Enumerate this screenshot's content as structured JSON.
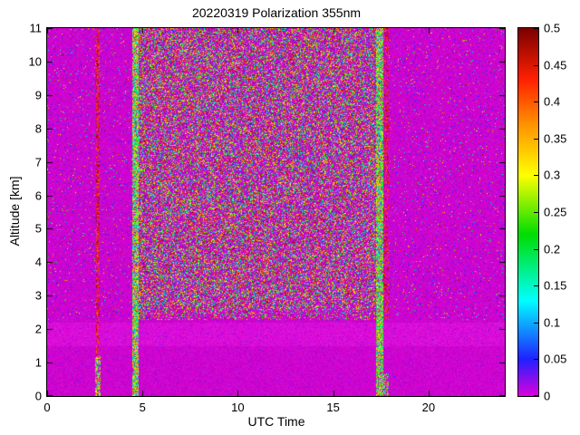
{
  "chart_data": {
    "type": "heatmap",
    "title": "20220319 Polarization 355nm",
    "xlabel": "UTC Time",
    "ylabel": "Altitude [km]",
    "xlim": [
      0,
      24
    ],
    "ylim": [
      0,
      11
    ],
    "value_range": [
      0,
      0.5
    ],
    "xticks": [
      0,
      5,
      10,
      15,
      20
    ],
    "yticks": [
      0,
      1,
      2,
      3,
      4,
      5,
      6,
      7,
      8,
      9,
      10,
      11
    ],
    "colorbar_ticks": [
      0,
      0.05,
      0.1,
      0.15,
      0.2,
      0.25,
      0.3,
      0.35,
      0.4,
      0.45,
      0.5
    ],
    "colormap_stops": [
      {
        "t": 0.0,
        "c": "#dd00dd"
      },
      {
        "t": 0.1,
        "c": "#2020ff"
      },
      {
        "t": 0.26,
        "c": "#00ffff"
      },
      {
        "t": 0.44,
        "c": "#00dd00"
      },
      {
        "t": 0.6,
        "c": "#ffff00"
      },
      {
        "t": 0.74,
        "c": "#ff9000"
      },
      {
        "t": 0.86,
        "c": "#ff2000"
      },
      {
        "t": 1.0,
        "c": "#7a0000"
      }
    ],
    "background_value": 0,
    "background_color": "#ce00ce",
    "description": "Lidar depolarization ratio vs UTC time and altitude. Background near 0 (magenta). Dense multicolor speckle noise for UTC 4.4-17.6 above ~2.5 km; sparse dark speckle elsewhere; smooth magenta below ~2.3 km with a slightly lighter band near 1.5-2.2 km; bright vertical calibration stripes near UTC 2.6, 4.6 and 17.4.",
    "noise_regions": [
      {
        "utc": [
          4.42,
          17.62
        ],
        "alt": [
          2.6,
          11
        ],
        "speckle_prob": 0.5,
        "mode": "uniform"
      },
      {
        "utc": [
          4.42,
          17.62
        ],
        "alt": [
          2.3,
          2.6
        ],
        "speckle_prob": 0.3,
        "mode": "uniform"
      },
      {
        "utc": [
          0,
          24
        ],
        "alt_min": 2.3,
        "outside_core": true,
        "speckle_prob": 0.1,
        "mode": "outer"
      },
      {
        "utc": [
          0,
          24
        ],
        "alt": [
          0,
          2.3
        ],
        "speckle_prob": 0.05,
        "mode": "low"
      },
      {
        "light_band_alt": [
          1.5,
          2.2
        ]
      }
    ],
    "stripes": [
      {
        "x": [
          2.52,
          2.72
        ],
        "alt": [
          1.0,
          11
        ],
        "prob": 0.5,
        "mode": "darkred"
      },
      {
        "x": [
          2.5,
          2.76
        ],
        "alt": [
          0,
          1.2
        ],
        "prob": 0.65,
        "mode": "bright"
      },
      {
        "x": [
          4.42,
          4.8
        ],
        "alt": [
          0,
          11
        ],
        "prob": 0.82,
        "mode": "bright"
      },
      {
        "x": [
          4.8,
          5.1
        ],
        "alt": [
          2.3,
          11
        ],
        "prob": 0.55,
        "mode": "uniform"
      },
      {
        "x": [
          7.75,
          7.95
        ],
        "alt": [
          2.6,
          11
        ],
        "prob": 0.6,
        "mode": "uniform"
      },
      {
        "x": [
          17.25,
          17.62
        ],
        "alt": [
          0,
          11
        ],
        "prob": 0.82,
        "mode": "bright"
      },
      {
        "x": [
          17.62,
          17.9
        ],
        "alt": [
          2.3,
          11
        ],
        "prob": 0.35,
        "mode": "darkred"
      },
      {
        "x": [
          17.62,
          17.88
        ],
        "alt": [
          0,
          0.7
        ],
        "prob": 0.5,
        "mode": "bright"
      },
      {
        "x": [
          20.6,
          20.82
        ],
        "alt": [
          2.3,
          11
        ],
        "prob": 0.05,
        "mode": "uniform"
      }
    ]
  }
}
